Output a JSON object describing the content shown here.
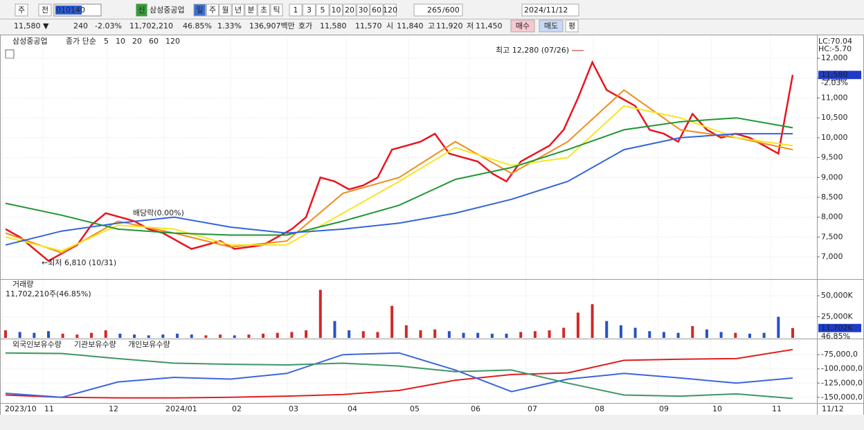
{
  "toolbar": {
    "market": "주",
    "prev": "전",
    "code": "010140",
    "badge": "신",
    "name": "삼성중공업",
    "periods": [
      "일",
      "주",
      "월",
      "년",
      "분",
      "초",
      "틱"
    ],
    "intervals": [
      "1",
      "3",
      "5",
      "10",
      "20",
      "30",
      "60",
      "120"
    ],
    "count": "265",
    "max": "/600",
    "date": "2024/11/12"
  },
  "quote": {
    "price": "11,580 ▼",
    "change": "240",
    "change_pct": "-2.03%",
    "volume": "11,702,210",
    "volume_ratio": "46.85%",
    "turnover": "1.33%",
    "amount": "136,907백만",
    "ask_label": "호가",
    "ask": "11,580",
    "bid": "11,570",
    "open_label": "시",
    "open": "11,840",
    "high_label": "고",
    "high": "11,920",
    "low_label": "저",
    "low": "11,450",
    "buy": "매수",
    "sell": "매도",
    "avg": "평"
  },
  "x_labels": [
    "2023/10",
    "11",
    "12",
    "2024/01",
    "02",
    "03",
    "04",
    "05",
    "06",
    "07",
    "08",
    "09",
    "10",
    "11",
    "11/12"
  ],
  "chart_data": [
    {
      "type": "line",
      "title": "삼성중공업",
      "legend_prefix": "종가 단순",
      "series": [
        {
          "name": "5",
          "color": "#e8141e",
          "values": [
            7700,
            7500,
            7200,
            6900,
            7100,
            7300,
            7800,
            8100,
            8000,
            7900,
            7700,
            7600,
            7400,
            7200,
            7300,
            7400,
            7200,
            7250,
            7300,
            7500,
            7700,
            8000,
            9000,
            8900,
            8700,
            8800,
            9000,
            9700,
            9800,
            9900,
            10100,
            9600,
            9500,
            9400,
            9100,
            8900,
            9400,
            9600,
            9800,
            10200,
            11000,
            11900,
            11200,
            11000,
            10800,
            10200,
            10100,
            9900,
            10600,
            10200,
            10000,
            10100,
            10000,
            9800,
            9600,
            11580
          ]
        },
        {
          "name": "10",
          "color": "#f08c1e",
          "values": [
            7600,
            7100,
            7900,
            7600,
            7250,
            7400,
            8600,
            9000,
            9900,
            9100,
            9900,
            11200,
            10200,
            10000,
            9700
          ]
        },
        {
          "name": "20",
          "color": "#f5e61e",
          "values": [
            7500,
            7150,
            7800,
            7700,
            7300,
            7300,
            8100,
            8900,
            9750,
            9300,
            9500,
            10800,
            10500,
            10000,
            9800
          ]
        },
        {
          "name": "60",
          "color": "#1e9632",
          "values": [
            8350,
            8050,
            7700,
            7600,
            7550,
            7550,
            7900,
            8300,
            8950,
            9250,
            9700,
            10200,
            10400,
            10500,
            10250
          ]
        },
        {
          "name": "120",
          "color": "#3264dc",
          "values": [
            7300,
            7650,
            7850,
            8000,
            7750,
            7600,
            7700,
            7850,
            8100,
            8450,
            8900,
            9700,
            10000,
            10100,
            10100
          ]
        }
      ],
      "ylim": [
        6460,
        12560
      ],
      "yticks": [
        {
          "value": 12000,
          "label": "12,000"
        },
        {
          "value": 11500,
          "label": "11,500"
        },
        {
          "value": 11000,
          "label": "11,000"
        },
        {
          "value": 10500,
          "label": "10,500"
        },
        {
          "value": 10000,
          "label": "10,000"
        },
        {
          "value": 9500,
          "label": "9,500"
        },
        {
          "value": 9000,
          "label": "9,000"
        },
        {
          "value": 8500,
          "label": "8,500"
        },
        {
          "value": 8000,
          "label": "8,000"
        },
        {
          "value": 7500,
          "label": "7,500"
        },
        {
          "value": 7000,
          "label": "7,000"
        }
      ],
      "annotations": [
        "최고 12,280 (07/26)",
        "배당락(0.00%)",
        "←최저 6,810 (10/31)"
      ],
      "indicators": [
        "LC:70.04",
        "HC:-5.70"
      ],
      "last": {
        "value": 11580,
        "label": "11,580"
      },
      "last_change": "-2.03%",
      "grid": true
    },
    {
      "type": "bar",
      "title": "거래량",
      "subtitle": "11,702,210주(46.85%)",
      "values": [
        9000,
        7000,
        6000,
        8000,
        5000,
        4000,
        6000,
        9000,
        5000,
        4000,
        3000,
        4000,
        5000,
        4000,
        3000,
        4000,
        3000,
        4000,
        5000,
        6000,
        7000,
        9000,
        57000,
        20000,
        9000,
        8000,
        7000,
        38000,
        15000,
        9000,
        10000,
        8000,
        6000,
        6000,
        5000,
        5000,
        7000,
        8000,
        9000,
        12000,
        30000,
        40000,
        20000,
        15000,
        12000,
        8000,
        7000,
        6000,
        14000,
        10000,
        7000,
        6000,
        5000,
        6000,
        25000,
        11702
      ],
      "ylim": [
        0,
        69000
      ],
      "yticks": [
        {
          "value": 50000,
          "label": "50,000K"
        },
        {
          "value": 25000,
          "label": "25,000K"
        }
      ],
      "last": {
        "value": 11702,
        "label": "11,702K"
      },
      "last_ratio": "46.85%",
      "grid": true
    },
    {
      "type": "line",
      "series": [
        {
          "name": "외국인보유수량",
          "color": "#e01e1e",
          "values": [
            -146000000,
            -150000000,
            -151000000,
            -151000000,
            -150000000,
            -148000000,
            -145000000,
            -138000000,
            -120000000,
            -110000000,
            -107000000,
            -85000000,
            -83000000,
            -82000000,
            -66000000
          ]
        },
        {
          "name": "기관보유수량",
          "color": "#3c64dc",
          "values": [
            -143000000,
            -150000000,
            -123000000,
            -115000000,
            -118000000,
            -108000000,
            -75000000,
            -72000000,
            -102000000,
            -140000000,
            -118000000,
            -108000000,
            -116000000,
            -125000000,
            -116000000
          ]
        },
        {
          "name": "개인보유수량",
          "color": "#3c9664",
          "values": [
            -72000000,
            -73000000,
            -82000000,
            -90000000,
            -92000000,
            -93000000,
            -90000000,
            -95000000,
            -105000000,
            -102000000,
            -125000000,
            -146000000,
            -148000000,
            -144000000,
            -152000000
          ]
        }
      ],
      "ylim": [
        -160000000,
        -48000000
      ],
      "yticks": [
        {
          "value": -75000000,
          "label": "-75,000,0"
        },
        {
          "value": -100000000,
          "label": "-100,000,0"
        },
        {
          "value": -125000000,
          "label": "-125,000,0"
        },
        {
          "value": -150000000,
          "label": "-150,000,0"
        }
      ],
      "grid": true
    }
  ]
}
